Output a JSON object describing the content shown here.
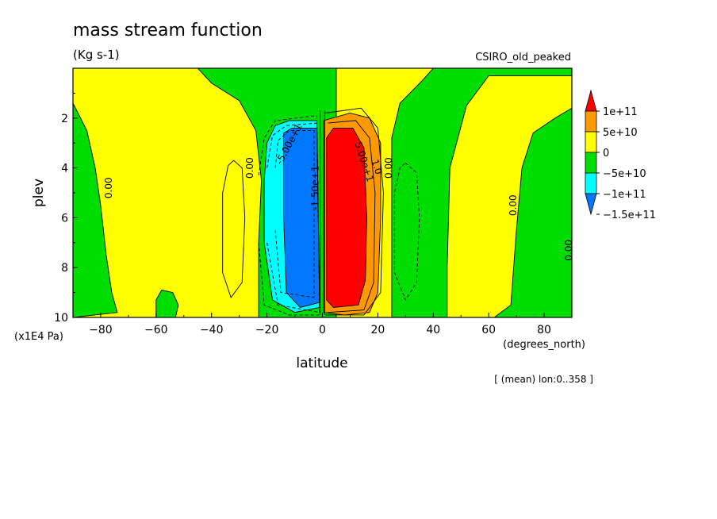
{
  "header": {
    "title": "mass stream function",
    "units": "(Kg s-1)",
    "dataset": "CSIRO_old_peaked"
  },
  "footer": {
    "mean_note": "[ (mean) lon:0..358 ]"
  },
  "chart_data": {
    "type": "contour",
    "title": "mass stream function",
    "xlabel": "latitude",
    "xunits": "(degrees_north)",
    "ylabel": "plev",
    "yunits": "(x1E4 Pa)",
    "xlim": [
      -90,
      90
    ],
    "ylim": [
      10,
      0
    ],
    "x_ticks": [
      -80,
      -60,
      -40,
      -20,
      0,
      20,
      40,
      60,
      80
    ],
    "y_ticks": [
      2,
      4,
      6,
      8,
      10
    ],
    "x_tick_labels": [
      "−80",
      "−60",
      "−40",
      "−20",
      "0",
      "20",
      "40",
      "60",
      "80"
    ],
    "y_tick_labels": [
      "2",
      "4",
      "6",
      "8",
      "10"
    ],
    "colorbar": {
      "labels": [
        "1e+11",
        "5e+10",
        "0",
        "−5e+10",
        "−1e+11",
        "−1.5e+11"
      ],
      "colors": [
        "#ff0000",
        "#ff9900",
        "#ffff00",
        "#00dd00",
        "#00ffff",
        "#0077ff"
      ],
      "levels": [
        100000000000.0,
        50000000000.0,
        0,
        -50000000000.0,
        -100000000000.0,
        -150000000000.0
      ]
    },
    "colors": {
      "red": "#ff0000",
      "orange": "#ff9900",
      "yellow": "#ffff00",
      "green": "#00dd00",
      "cyan": "#00ffff",
      "blue": "#0077ff"
    },
    "regions": [
      {
        "level": "yellow",
        "points": [
          [
            -90,
            0
          ],
          [
            -45,
            0
          ],
          [
            -40,
            0.6
          ],
          [
            -30,
            1.3
          ],
          [
            -24,
            2.5
          ],
          [
            -22,
            4.5
          ],
          [
            -23,
            7
          ],
          [
            -23,
            10
          ],
          [
            -90,
            10
          ]
        ]
      },
      {
        "level": "green",
        "points": [
          [
            -90,
            1.4
          ],
          [
            -85,
            2.5
          ],
          [
            -82,
            4
          ],
          [
            -80,
            5.5
          ],
          [
            -78,
            7.5
          ],
          [
            -76,
            9
          ],
          [
            -74,
            9.8
          ],
          [
            -90,
            10
          ]
        ]
      },
      {
        "level": "green",
        "points": [
          [
            -58,
            8.9
          ],
          [
            -54,
            9
          ],
          [
            -52,
            9.5
          ],
          [
            -53,
            10
          ],
          [
            -60,
            10
          ],
          [
            -60,
            9.3
          ]
        ]
      },
      {
        "level": "yellow",
        "points": [
          [
            5,
            0
          ],
          [
            40,
            0
          ],
          [
            36,
            0.5
          ],
          [
            28,
            1.4
          ],
          [
            25,
            2.8
          ],
          [
            25,
            6
          ],
          [
            25,
            10
          ],
          [
            5,
            10
          ]
        ]
      },
      {
        "level": "yellow",
        "points": [
          [
            45,
            10
          ],
          [
            62,
            10
          ],
          [
            68,
            9.5
          ],
          [
            70,
            6.5
          ],
          [
            72,
            4
          ],
          [
            76,
            2.6
          ],
          [
            84,
            2
          ],
          [
            90,
            1.6
          ],
          [
            90,
            0.3
          ],
          [
            60,
            0.3
          ],
          [
            52,
            1.5
          ],
          [
            46,
            4
          ],
          [
            45,
            8
          ]
        ]
      },
      {
        "level": "cyan",
        "points": [
          [
            -20,
            3
          ],
          [
            -17,
            2.3
          ],
          [
            -12,
            2.1
          ],
          [
            -2,
            2.1
          ],
          [
            -1,
            9.6
          ],
          [
            -10,
            9.8
          ],
          [
            -18,
            9.3
          ],
          [
            -21,
            7
          ],
          [
            -21,
            4.5
          ]
        ]
      },
      {
        "level": "blue",
        "points": [
          [
            -14,
            2.6
          ],
          [
            -11,
            2.4
          ],
          [
            -2,
            2.4
          ],
          [
            -1,
            9.4
          ],
          [
            -8,
            9.6
          ],
          [
            -13,
            9
          ],
          [
            -14,
            6
          ]
        ]
      },
      {
        "level": "orange",
        "points": [
          [
            0.5,
            2.1
          ],
          [
            10,
            1.8
          ],
          [
            17,
            2
          ],
          [
            21,
            3
          ],
          [
            21,
            6
          ],
          [
            20,
            9
          ],
          [
            17,
            9.8
          ],
          [
            8,
            9.9
          ],
          [
            0.5,
            9.8
          ]
        ]
      },
      {
        "level": "red",
        "points": [
          [
            1.5,
            2.8
          ],
          [
            4,
            2.4
          ],
          [
            11,
            2.4
          ],
          [
            15,
            3.2
          ],
          [
            16,
            6
          ],
          [
            15.5,
            8.5
          ],
          [
            13,
            9.5
          ],
          [
            4,
            9.6
          ],
          [
            1.5,
            9.3
          ]
        ]
      }
    ],
    "contours": [
      {
        "style": "solid",
        "points": [
          [
            -32,
            3.7
          ],
          [
            -29,
            4
          ],
          [
            -28,
            6
          ],
          [
            -29,
            8.6
          ],
          [
            -33,
            9.2
          ],
          [
            -36,
            8.2
          ],
          [
            -36,
            5
          ],
          [
            -34,
            3.9
          ],
          [
            -32,
            3.7
          ]
        ]
      },
      {
        "style": "dashed",
        "points": [
          [
            30,
            3.8
          ],
          [
            34,
            4.2
          ],
          [
            35,
            6
          ],
          [
            34,
            8.6
          ],
          [
            30,
            9.3
          ],
          [
            26,
            8.2
          ],
          [
            26,
            5
          ],
          [
            28,
            4
          ],
          [
            30,
            3.8
          ]
        ]
      },
      {
        "style": "dashed",
        "points": [
          [
            -23,
            4.3
          ],
          [
            -21,
            2.8
          ],
          [
            -17,
            2.1
          ],
          [
            -2,
            1.9
          ],
          [
            -1,
            9.9
          ],
          [
            -12,
            9.9
          ],
          [
            -21,
            9.5
          ],
          [
            -23,
            7
          ]
        ]
      },
      {
        "style": "dashed",
        "points": [
          [
            -20,
            4
          ],
          [
            -18,
            2.7
          ],
          [
            -13,
            2.3
          ],
          [
            -2,
            2.2
          ],
          [
            -1,
            9.8
          ],
          [
            -16,
            9.5
          ],
          [
            -20,
            7
          ]
        ]
      },
      {
        "style": "dashed",
        "points": [
          [
            -17,
            4
          ],
          [
            -16,
            2.9
          ],
          [
            -12,
            2.5
          ],
          [
            -3,
            2.5
          ],
          [
            -3,
            9.2
          ],
          [
            -15,
            9
          ],
          [
            -17,
            6.5
          ]
        ]
      },
      {
        "style": "solid",
        "points": [
          [
            1,
            1.8
          ],
          [
            14,
            1.6
          ],
          [
            20,
            2.4
          ],
          [
            22,
            5
          ],
          [
            21,
            9
          ],
          [
            15,
            9.9
          ],
          [
            1,
            9.9
          ]
        ]
      },
      {
        "style": "solid",
        "points": [
          [
            2,
            2.2
          ],
          [
            12,
            2.1
          ],
          [
            17,
            2.8
          ],
          [
            19,
            5
          ],
          [
            18.5,
            8.6
          ],
          [
            15,
            9.7
          ],
          [
            2,
            9.8
          ]
        ]
      },
      {
        "style": "solid",
        "points": [
          [
            -0.8,
            1.7
          ],
          [
            -0.8,
            9.9
          ]
        ]
      },
      {
        "style": "solid",
        "points": [
          [
            0.8,
            1.7
          ],
          [
            0.8,
            9.9
          ]
        ]
      }
    ],
    "contour_labels": [
      {
        "text": "-5.00e+1",
        "x": -11,
        "y": 3.1,
        "angle": -62
      },
      {
        "text": "-1.50e+1",
        "x": -1.5,
        "y": 4.8,
        "angle": -90
      },
      {
        "text": "5.00e+1",
        "x": 14,
        "y": 3.8,
        "angle": 72
      },
      {
        "text": "1.0",
        "x": 18.5,
        "y": 4.0,
        "angle": 72
      },
      {
        "text": "0.00",
        "x": -90,
        "y": 3.9,
        "angle": -90
      },
      {
        "text": "0.00",
        "x": -76,
        "y": 4.8,
        "angle": -90
      },
      {
        "text": "0.00",
        "x": -25,
        "y": 4.0,
        "angle": -90
      },
      {
        "text": "0.00",
        "x": 25,
        "y": 4.0,
        "angle": -90
      },
      {
        "text": "0.00",
        "x": 70,
        "y": 5.5,
        "angle": -90
      },
      {
        "text": "0.00",
        "x": 90,
        "y": 7.3,
        "angle": -90
      }
    ]
  }
}
